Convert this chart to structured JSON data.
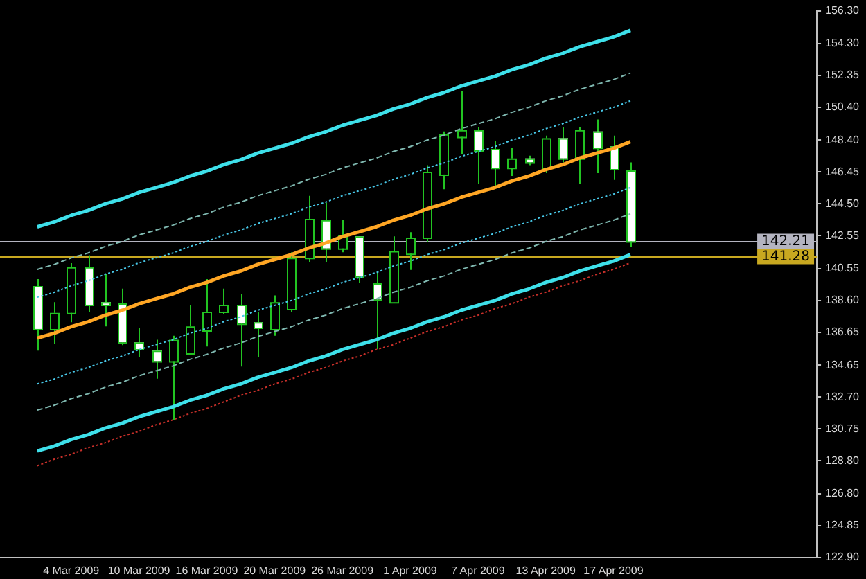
{
  "chart_data": {
    "type": "candlestick",
    "categories": [
      null,
      null,
      "4 Mar 2009",
      null,
      null,
      null,
      "10 Mar 2009",
      null,
      null,
      null,
      "16 Mar 2009",
      null,
      null,
      null,
      "20 Mar 2009",
      null,
      null,
      null,
      "26 Mar 2009",
      null,
      null,
      null,
      "1 Apr 2009",
      null,
      null,
      null,
      "7 Apr 2009",
      null,
      null,
      null,
      "13 Apr 2009",
      null,
      null,
      null,
      "17 Apr 2009",
      null
    ],
    "color": "#22c422",
    "colors": [
      "#ffffff",
      "#000000",
      "#000000",
      "#ffffff",
      "#ffffff",
      "#ffffff",
      "#ffffff",
      "#ffffff",
      "#000000",
      "#000000",
      "#000000",
      "#000000",
      "#ffffff",
      "#ffffff",
      "#000000",
      "#000000",
      "#000000",
      "#ffffff",
      "#000000",
      "#ffffff",
      "#ffffff",
      "#000000",
      "#000000",
      "#000000",
      "#000000",
      "#000000",
      "#ffffff",
      "#ffffff",
      "#000000",
      "#ffffff",
      "#000000",
      "#ffffff",
      "#000000",
      "#ffffff",
      "#ffffff",
      "#ffffff"
    ],
    "ohlc": [
      [
        139.48,
        139.9,
        135.54,
        136.86
      ],
      [
        136.86,
        138.5,
        135.95,
        137.84
      ],
      [
        137.84,
        140.88,
        137.27,
        140.63
      ],
      [
        140.63,
        141.37,
        137.92,
        138.34
      ],
      [
        138.5,
        140.22,
        137.02,
        138.34
      ],
      [
        138.42,
        139.32,
        135.87,
        136.04
      ],
      [
        136.04,
        136.94,
        135.13,
        135.63
      ],
      [
        135.54,
        136.2,
        133.82,
        134.89
      ],
      [
        134.89,
        136.45,
        131.27,
        136.2
      ],
      [
        135.38,
        138.34,
        135.3,
        137.02
      ],
      [
        136.77,
        139.9,
        135.79,
        137.92
      ],
      [
        137.92,
        139.32,
        137.76,
        138.34
      ],
      [
        138.34,
        138.99,
        134.56,
        137.19
      ],
      [
        137.27,
        137.92,
        135.13,
        136.94
      ],
      [
        136.86,
        138.91,
        136.45,
        138.5
      ],
      [
        138.09,
        141.54,
        137.92,
        141.21
      ],
      [
        141.21,
        144.99,
        140.96,
        143.59
      ],
      [
        143.51,
        144.57,
        140.96,
        141.78
      ],
      [
        141.78,
        143.51,
        141.54,
        142.6
      ],
      [
        142.52,
        142.52,
        139.65,
        140.06
      ],
      [
        139.65,
        140.39,
        135.63,
        138.66
      ],
      [
        138.5,
        142.52,
        138.5,
        141.62
      ],
      [
        141.46,
        142.77,
        140.47,
        142.44
      ],
      [
        142.44,
        146.87,
        142.19,
        146.46
      ],
      [
        146.3,
        148.93,
        145.4,
        148.76
      ],
      [
        148.6,
        151.39,
        147.53,
        149.01
      ],
      [
        149.01,
        149.17,
        145.72,
        147.78
      ],
      [
        147.86,
        148.35,
        145.56,
        146.71
      ],
      [
        146.71,
        147.94,
        146.21,
        147.28
      ],
      [
        147.28,
        147.45,
        146.87,
        147.04
      ],
      [
        146.71,
        148.68,
        146.38,
        148.52
      ],
      [
        148.52,
        149.17,
        147.04,
        147.28
      ],
      [
        147.28,
        149.17,
        145.72,
        149.01
      ],
      [
        148.93,
        149.66,
        146.38,
        147.94
      ],
      [
        148.02,
        148.68,
        145.97,
        146.63
      ],
      [
        146.55,
        147.04,
        141.87,
        142.21
      ]
    ],
    "series": [
      {
        "type": "line",
        "color": "#3ee0ea",
        "line_style": "solid",
        "values": [
          143.1,
          143.4,
          143.8,
          144.1,
          144.5,
          144.8,
          145.2,
          145.5,
          145.8,
          146.2,
          146.5,
          146.9,
          147.2,
          147.6,
          147.9,
          148.2,
          148.6,
          148.9,
          149.3,
          149.6,
          149.9,
          150.3,
          150.6,
          151.0,
          151.3,
          151.7,
          152.0,
          152.3,
          152.7,
          153.0,
          153.4,
          153.7,
          154.1,
          154.4,
          154.7,
          155.1
        ]
      },
      {
        "type": "line",
        "color": "#7fb8b0",
        "line_style": "dashed",
        "values": [
          140.5,
          140.8,
          141.2,
          141.5,
          141.9,
          142.2,
          142.6,
          142.9,
          143.2,
          143.6,
          143.9,
          144.3,
          144.6,
          145.0,
          145.3,
          145.6,
          146.0,
          146.3,
          146.7,
          147.0,
          147.3,
          147.7,
          148.0,
          148.4,
          148.7,
          149.1,
          149.4,
          149.7,
          150.1,
          150.4,
          150.8,
          151.1,
          151.5,
          151.8,
          152.1,
          152.5
        ]
      },
      {
        "type": "line",
        "color": "#48c8e8",
        "line_style": "dotted",
        "values": [
          138.8,
          139.1,
          139.5,
          139.8,
          140.2,
          140.5,
          140.9,
          141.2,
          141.5,
          141.9,
          142.2,
          142.6,
          142.9,
          143.3,
          143.6,
          143.9,
          144.3,
          144.6,
          145.0,
          145.3,
          145.6,
          146.0,
          146.3,
          146.7,
          147.0,
          147.4,
          147.7,
          148.0,
          148.4,
          148.7,
          149.1,
          149.4,
          149.8,
          150.1,
          150.4,
          150.8
        ]
      },
      {
        "type": "line",
        "color": "#ffa624",
        "line_style": "solid",
        "values": [
          136.3,
          136.6,
          137.0,
          137.3,
          137.7,
          138.0,
          138.4,
          138.7,
          139.0,
          139.4,
          139.7,
          140.1,
          140.4,
          140.8,
          141.1,
          141.4,
          141.8,
          142.1,
          142.5,
          142.8,
          143.1,
          143.5,
          143.8,
          144.2,
          144.5,
          144.9,
          145.2,
          145.5,
          145.9,
          146.2,
          146.6,
          146.9,
          147.3,
          147.6,
          147.9,
          148.3
        ]
      },
      {
        "type": "line",
        "color": "#48c8e8",
        "line_style": "dotted",
        "values": [
          133.5,
          133.8,
          134.2,
          134.5,
          134.9,
          135.2,
          135.6,
          135.9,
          136.2,
          136.6,
          136.9,
          137.3,
          137.6,
          138.0,
          138.3,
          138.6,
          139.0,
          139.3,
          139.7,
          140.0,
          140.3,
          140.7,
          141.0,
          141.4,
          141.7,
          142.1,
          142.4,
          142.7,
          143.1,
          143.4,
          143.8,
          144.1,
          144.5,
          144.8,
          145.1,
          145.5
        ]
      },
      {
        "type": "line",
        "color": "#7fb8b0",
        "line_style": "dashed",
        "values": [
          131.9,
          132.2,
          132.6,
          132.9,
          133.3,
          133.6,
          134.0,
          134.3,
          134.6,
          135.0,
          135.3,
          135.7,
          136.0,
          136.4,
          136.7,
          137.0,
          137.4,
          137.7,
          138.1,
          138.4,
          138.7,
          139.1,
          139.4,
          139.8,
          140.1,
          140.5,
          140.8,
          141.1,
          141.5,
          141.8,
          142.2,
          142.5,
          142.9,
          143.2,
          143.5,
          143.9
        ]
      },
      {
        "type": "line",
        "color": "#3ee0ea",
        "line_style": "solid",
        "values": [
          129.4,
          129.7,
          130.1,
          130.4,
          130.8,
          131.1,
          131.5,
          131.8,
          132.1,
          132.5,
          132.8,
          133.2,
          133.5,
          133.9,
          134.2,
          134.5,
          134.9,
          135.2,
          135.6,
          135.9,
          136.2,
          136.6,
          136.9,
          137.3,
          137.6,
          138.0,
          138.3,
          138.6,
          139.0,
          139.3,
          139.7,
          140.0,
          140.4,
          140.7,
          141.0,
          141.4
        ]
      },
      {
        "type": "line",
        "color": "#c8302a",
        "line_style": "dotted",
        "values": [
          128.5,
          128.9,
          129.2,
          129.6,
          129.9,
          130.3,
          130.6,
          131.0,
          131.3,
          131.7,
          132.0,
          132.4,
          132.8,
          133.1,
          133.5,
          133.8,
          134.2,
          134.5,
          134.9,
          135.2,
          135.6,
          135.9,
          136.3,
          136.7,
          137.0,
          137.4,
          137.7,
          138.1,
          138.4,
          138.8,
          139.1,
          139.5,
          139.8,
          140.2,
          140.5,
          140.9
        ]
      }
    ],
    "ylim": [
      122.9,
      156.3
    ],
    "yticks": [
      {
        "value": 156.3,
        "label": "156.30"
      },
      {
        "value": 154.3,
        "label": "154.30"
      },
      152.35,
      {
        "value": 150.4,
        "label": "150.40"
      },
      {
        "value": 148.4,
        "label": "148.40"
      },
      146.45,
      {
        "value": 144.5,
        "label": "144.50"
      },
      142.55,
      140.55,
      {
        "value": 138.6,
        "label": "138.60"
      },
      136.65,
      134.65,
      {
        "value": 132.7,
        "label": "132.70"
      },
      130.75,
      {
        "value": 128.8,
        "label": "128.80"
      },
      {
        "value": 126.8,
        "label": "126.80"
      },
      124.85,
      {
        "value": 122.9,
        "label": "122.90"
      }
    ],
    "ref_lines": [
      {
        "axis": "y",
        "value": 142.21,
        "label": "142.21",
        "color": "#b4b4c0"
      },
      {
        "axis": "y",
        "value": 141.28,
        "label": "141.28",
        "color": "#c8a820"
      }
    ],
    "grid": false,
    "legend": false
  }
}
